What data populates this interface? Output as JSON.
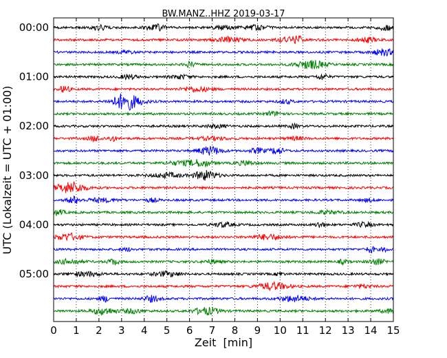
{
  "chart_data": {
    "type": "line",
    "title": "BW.MANZ..HHZ 2019-03-17",
    "xlabel": "Zeit  [min]",
    "ylabel": "UTC (Lokalzeit = UTC + 01:00)",
    "xlim": [
      0,
      15
    ],
    "x_ticks": [
      "0",
      "1",
      "2",
      "3",
      "4",
      "5",
      "6",
      "7",
      "8",
      "9",
      "10",
      "11",
      "12",
      "13",
      "14",
      "15"
    ],
    "y_ticks": [
      "00:00",
      "01:00",
      "02:00",
      "03:00",
      "04:00",
      "05:00"
    ],
    "trace_count": 24,
    "trace_interval_min": 15,
    "trace_colors": [
      "#000000",
      "#ff0000",
      "#0000ff",
      "#008000"
    ],
    "grid": "vertical-dotted"
  }
}
